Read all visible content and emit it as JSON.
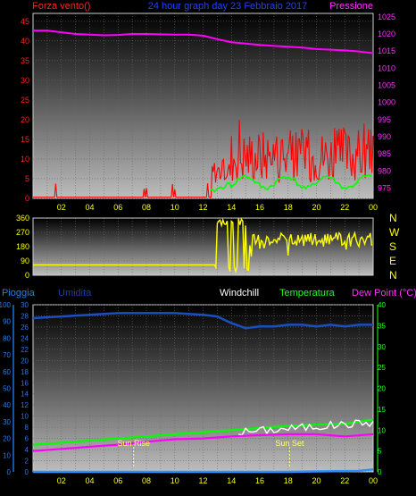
{
  "colors": {
    "wind": "#ff0000",
    "gust": "#00ff00",
    "pressure": "#ff00ff",
    "direction": "#ffff00",
    "rain": "#1e6fd9",
    "humidity": "#0a3fa6",
    "windchill": "#ffffff",
    "temperature": "#00ff00",
    "dewpoint": "#ff00ff",
    "sun": "#ffff88"
  },
  "chart_data": [
    {
      "type": "line",
      "title": "24 hour graph day  23 Febbraio 2017",
      "left_axis_label": "Forza vento()",
      "right_axis_label": "Pressione",
      "left_ticks": [
        "0",
        "5",
        "10",
        "15",
        "20",
        "25",
        "30",
        "35",
        "40",
        "45"
      ],
      "right_ticks": [
        "975",
        "980",
        "985",
        "990",
        "995",
        "1000",
        "1005",
        "1010",
        "1015",
        "1020",
        "1025"
      ],
      "x_ticks": [
        "02",
        "04",
        "06",
        "08",
        "10",
        "12",
        "14",
        "16",
        "18",
        "20",
        "22",
        "00"
      ],
      "ylim_left": [
        0,
        47
      ],
      "ylim_right": [
        972,
        1026
      ],
      "grid": true,
      "series": [
        {
          "name": "Pressione",
          "x": [
            0,
            1,
            2,
            3,
            4,
            5,
            6,
            7,
            8,
            9,
            10,
            11,
            12,
            13,
            14,
            15,
            16,
            17,
            18,
            19,
            20,
            21,
            22,
            23,
            24
          ],
          "values": [
            1021,
            1021,
            1020.5,
            1020,
            1019.8,
            1019.6,
            1019.7,
            1020,
            1020,
            1019.9,
            1019.8,
            1019.8,
            1019.5,
            1018.5,
            1017.6,
            1017.2,
            1016.8,
            1016.5,
            1016.3,
            1016,
            1015.6,
            1015.4,
            1015.2,
            1014.9,
            1014.4
          ]
        }
      ]
    },
    {
      "type": "line",
      "right_axis_labels": [
        "N",
        "W",
        "S",
        "E",
        "N"
      ],
      "left_ticks": [
        "0",
        "90",
        "180",
        "270",
        "360"
      ],
      "ylim": [
        0,
        360
      ],
      "x_ticks": [],
      "grid": true
    },
    {
      "type": "line",
      "labels": {
        "rain": "Pioggia",
        "humidity": "Umidita",
        "windchill": "Windchill",
        "temperature": "Temperatura",
        "dewpoint": "Dew Point (°C)"
      },
      "left_ticks_rain": [
        "0",
        "10",
        "20",
        "30",
        "40",
        "50",
        "60",
        "70",
        "80",
        "90",
        "100"
      ],
      "left_ticks_hum": [
        "0",
        "2",
        "4",
        "6",
        "8",
        "10",
        "12",
        "14",
        "16",
        "18",
        "20",
        "22",
        "24",
        "26",
        "28",
        "30"
      ],
      "right_ticks": [
        "0",
        "5",
        "10",
        "15",
        "20",
        "25",
        "30",
        "35",
        "40"
      ],
      "x_ticks": [
        "02",
        "04",
        "06",
        "08",
        "10",
        "12",
        "14",
        "16",
        "18",
        "20",
        "22",
        "00"
      ],
      "ylim_hum": [
        0,
        30
      ],
      "ylim_temp": [
        0,
        40
      ],
      "grid": true,
      "annotations": [
        {
          "text": "Sun Rise",
          "x": 7.1
        },
        {
          "text": "Sun Set",
          "x": 18.1
        }
      ],
      "series": [
        {
          "name": "Umidita",
          "x": [
            0,
            2,
            4,
            6,
            8,
            10,
            12,
            13,
            14,
            15,
            16,
            17,
            18,
            19,
            20,
            21,
            22,
            23,
            24
          ],
          "values": [
            92,
            93,
            94,
            95,
            95,
            95,
            94,
            93,
            89,
            86,
            87,
            87,
            88,
            88,
            87,
            88,
            87,
            88,
            88
          ]
        },
        {
          "name": "Temperatura",
          "x": [
            0,
            2,
            4,
            6,
            8,
            10,
            12,
            14,
            16,
            18,
            20,
            22,
            24
          ],
          "values": [
            6.5,
            7,
            7.5,
            8,
            8.5,
            9,
            9.5,
            10,
            10.5,
            11,
            11.3,
            11.5,
            12.5
          ]
        },
        {
          "name": "Dew Point (°C)",
          "x": [
            0,
            2,
            4,
            6,
            8,
            10,
            12,
            14,
            16,
            18,
            20,
            22,
            24
          ],
          "values": [
            5,
            5.5,
            6,
            6.5,
            7.2,
            7.8,
            8,
            8.5,
            8.8,
            9,
            9,
            8.5,
            9
          ]
        },
        {
          "name": "Pioggia",
          "x": [
            0,
            6,
            12,
            18,
            22,
            23,
            24
          ],
          "values": [
            0,
            0,
            0,
            0,
            0.5,
            0.6,
            1.5
          ]
        }
      ]
    }
  ]
}
